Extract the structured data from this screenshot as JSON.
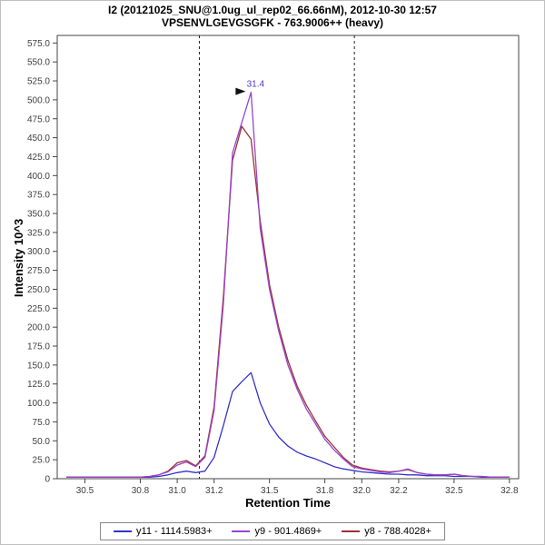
{
  "chart_data": {
    "type": "line",
    "title": "I2 (20121025_SNU@1.0ug_ul_rep02_66.66nM), 2012-10-30 12:57",
    "subtitle": "VPSENVLGEVGSGFK - 763.9006++ (heavy)",
    "xlabel": "Retention Time",
    "ylabel": "Intensity 10^3",
    "xlim": [
      30.35,
      32.85
    ],
    "ylim": [
      0,
      585
    ],
    "grid": false,
    "legend_position": "bottom",
    "x_tick_values": [
      30.5,
      30.8,
      31.0,
      31.2,
      31.5,
      31.8,
      32.0,
      32.2,
      32.5,
      32.8
    ],
    "x_tick_labels": [
      "30.5",
      "30.8",
      "31.0",
      "31.2",
      "31.5",
      "31.8",
      "32.0",
      "32.2",
      "32.5",
      "32.8"
    ],
    "y_tick_values": [
      0,
      25,
      50,
      75,
      100,
      125,
      150,
      175,
      200,
      225,
      250,
      275,
      300,
      325,
      350,
      375,
      400,
      425,
      450,
      475,
      500,
      525,
      550,
      575
    ],
    "y_tick_labels": [
      "0",
      "25.0",
      "50.0",
      "75.0",
      "100.0",
      "125.0",
      "150.0",
      "175.0",
      "200.0",
      "225.0",
      "250.0",
      "275.0",
      "300.0",
      "325.0",
      "350.0",
      "375.0",
      "400.0",
      "425.0",
      "450.0",
      "475.0",
      "500.0",
      "525.0",
      "550.0",
      "575.0"
    ],
    "integration_boundaries": [
      31.12,
      31.96
    ],
    "peak_annotation": {
      "text": "31.4",
      "x": 31.4,
      "y": 510,
      "color": "#5533bb"
    },
    "x": [
      30.4,
      30.45,
      30.5,
      30.55,
      30.6,
      30.65,
      30.7,
      30.75,
      30.8,
      30.85,
      30.9,
      30.95,
      31.0,
      31.05,
      31.1,
      31.15,
      31.2,
      31.25,
      31.3,
      31.35,
      31.4,
      31.45,
      31.5,
      31.55,
      31.6,
      31.65,
      31.7,
      31.75,
      31.8,
      31.85,
      31.9,
      31.95,
      32.0,
      32.05,
      32.1,
      32.15,
      32.2,
      32.25,
      32.3,
      32.35,
      32.4,
      32.45,
      32.5,
      32.55,
      32.6,
      32.65,
      32.7,
      32.75,
      32.8
    ],
    "series": [
      {
        "name": "y11 - 1114.5983+",
        "color": "#3333cc",
        "values": [
          2,
          2,
          2,
          2,
          2,
          2,
          2,
          2,
          2,
          2,
          3,
          5,
          8,
          10,
          8,
          10,
          28,
          70,
          115,
          128,
          140,
          100,
          72,
          55,
          43,
          35,
          30,
          26,
          21,
          16,
          13,
          11,
          9,
          8,
          7,
          6,
          6,
          5,
          5,
          4,
          4,
          4,
          3,
          3,
          3,
          2,
          2,
          2,
          2
        ]
      },
      {
        "name": "y9 - 901.4869+",
        "color": "#9944cc",
        "values": [
          2,
          2,
          2,
          2,
          2,
          2,
          2,
          2,
          2,
          3,
          5,
          9,
          18,
          22,
          16,
          28,
          90,
          230,
          430,
          470,
          510,
          330,
          250,
          195,
          150,
          118,
          92,
          72,
          52,
          38,
          26,
          16,
          13,
          11,
          9,
          8,
          10,
          13,
          8,
          6,
          5,
          5,
          6,
          4,
          3,
          3,
          2,
          2,
          2
        ]
      },
      {
        "name": "y8 - 788.4028+",
        "color": "#993333",
        "values": [
          2,
          2,
          2,
          2,
          2,
          2,
          2,
          2,
          2,
          3,
          5,
          10,
          21,
          24,
          17,
          30,
          95,
          240,
          420,
          465,
          448,
          340,
          256,
          200,
          156,
          122,
          97,
          76,
          56,
          42,
          28,
          18,
          14,
          12,
          10,
          9,
          10,
          12,
          8,
          6,
          5,
          5,
          6,
          4,
          3,
          3,
          2,
          2,
          2
        ]
      }
    ]
  }
}
